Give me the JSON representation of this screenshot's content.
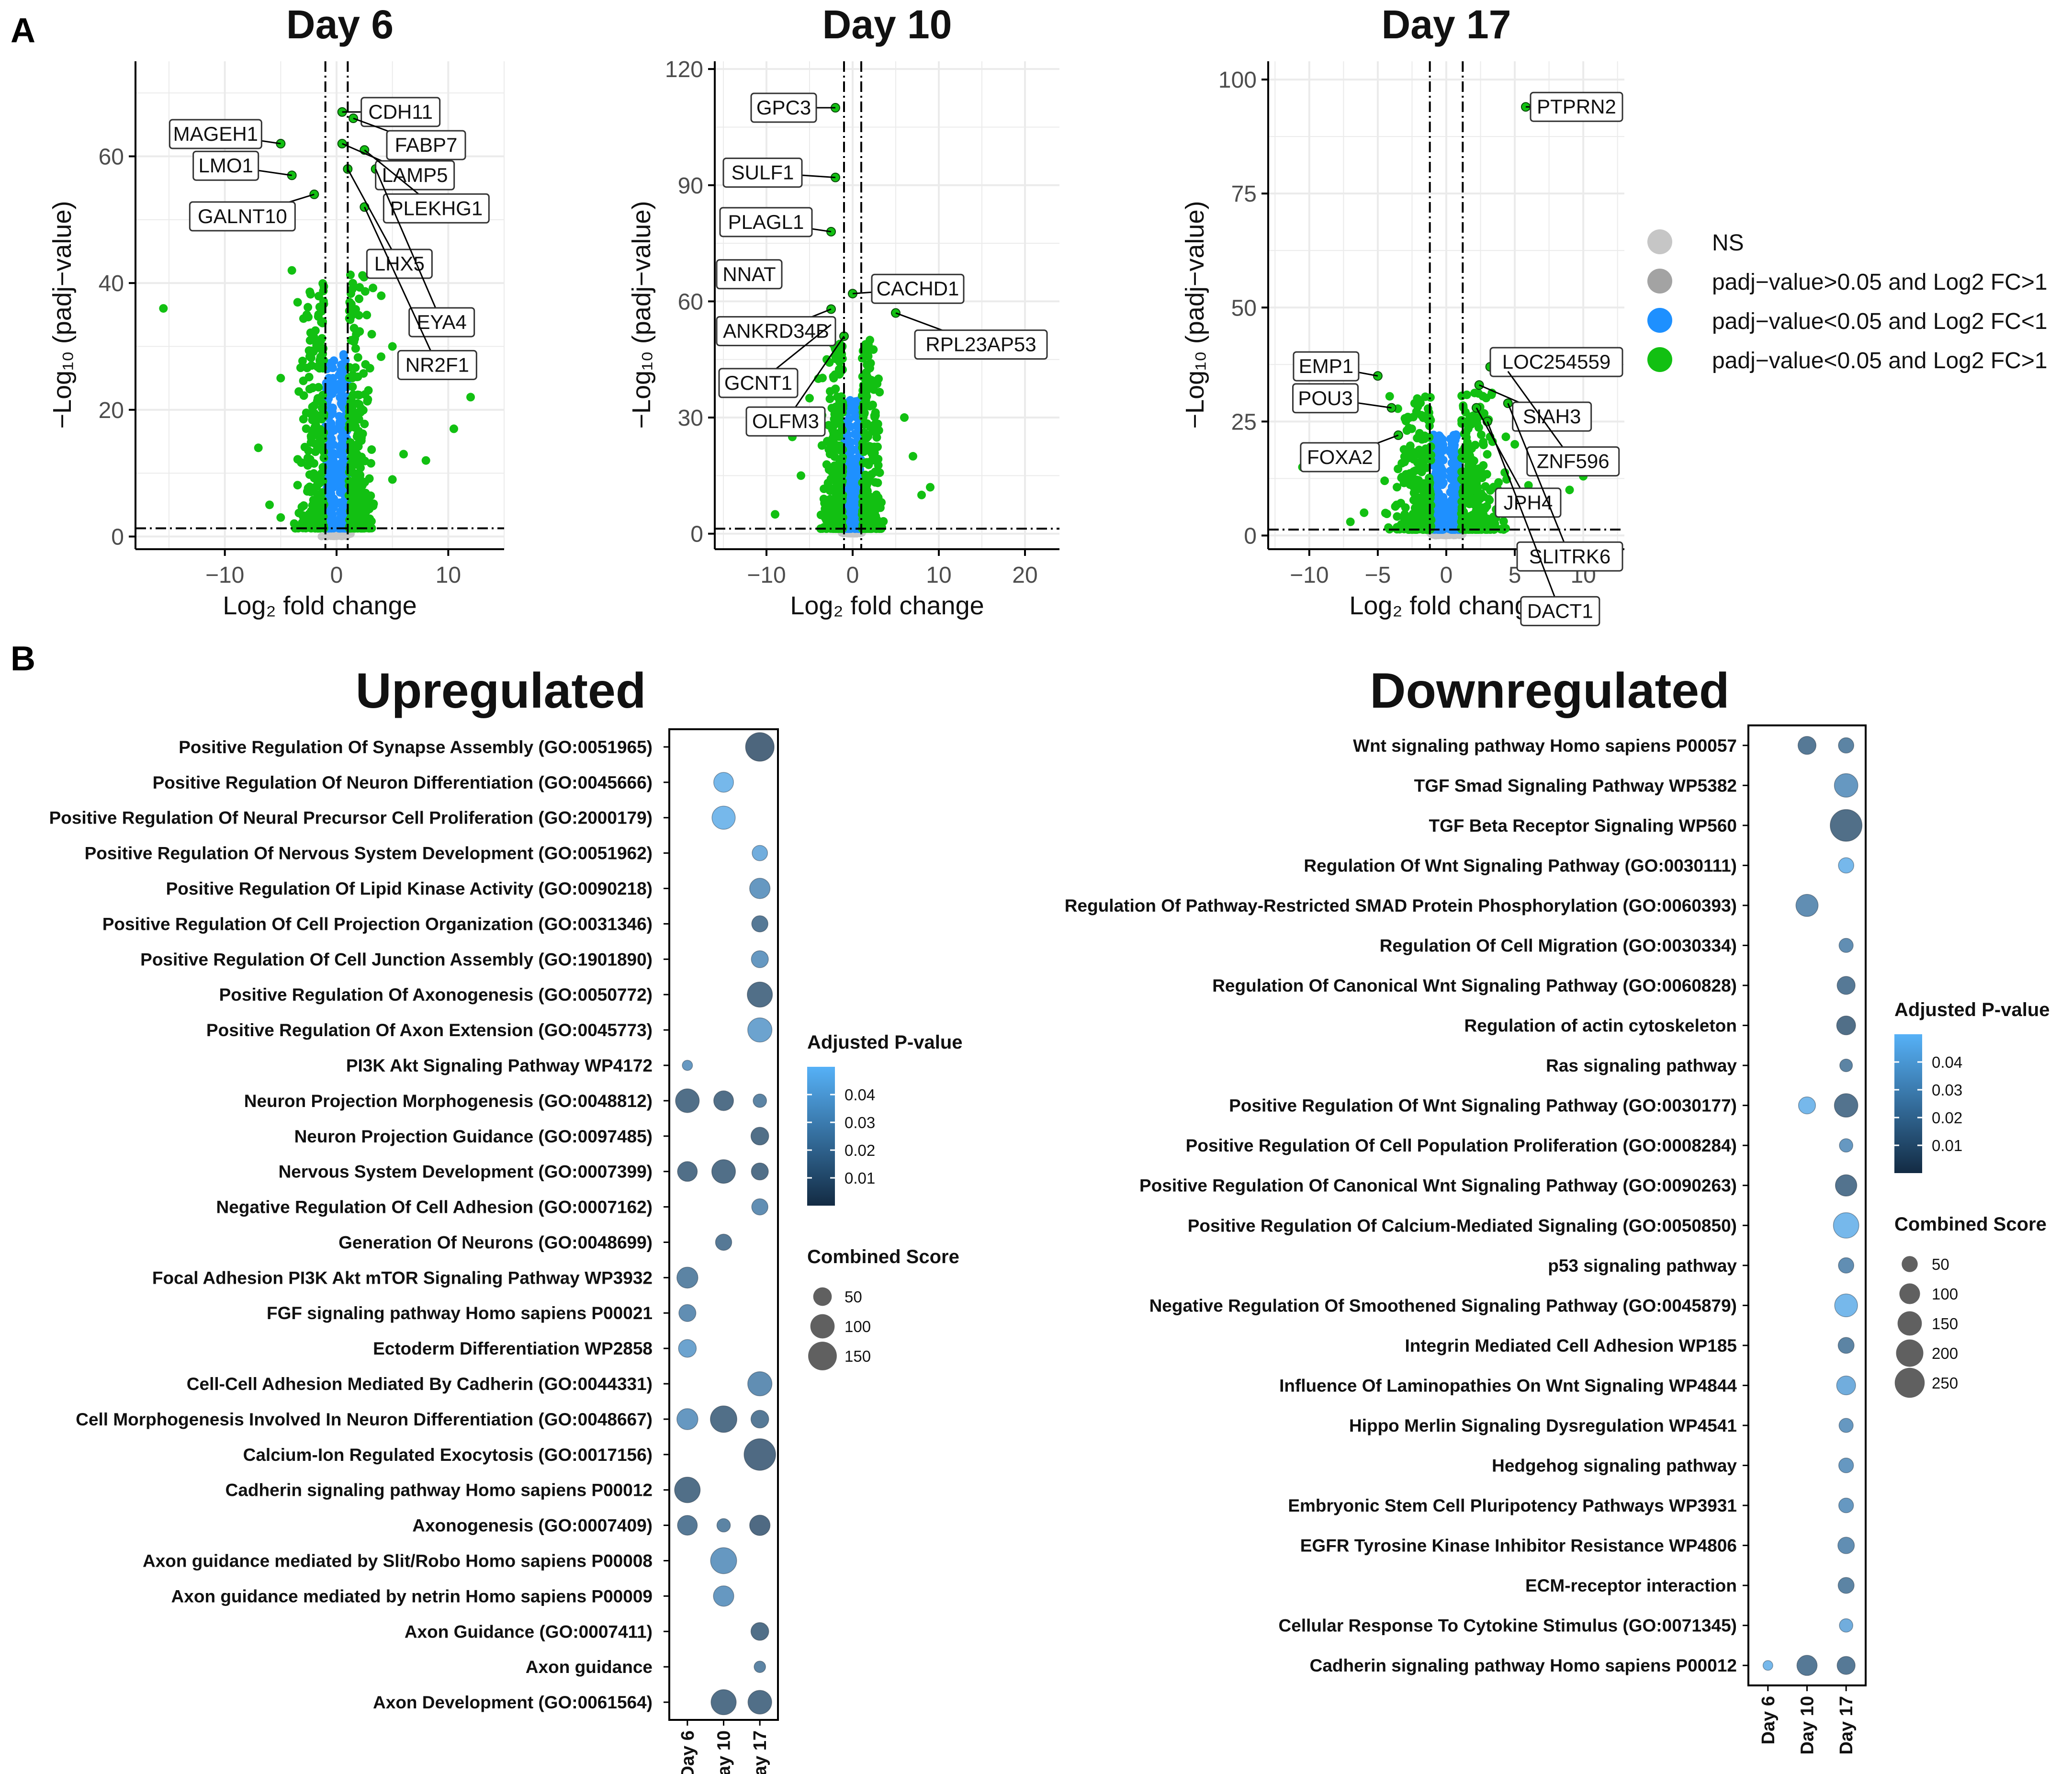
{
  "figure": {
    "panel_a_letter": "A",
    "panel_b_letter": "B",
    "volcano_xlabel": "Log₂ fold change",
    "volcano_ylabel": "−Log₁₀ (padj−value)",
    "legend": [
      {
        "label": "NS",
        "color": "#c6c6c6"
      },
      {
        "label": "padj−value>0.05 and Log2 FC>1",
        "color": "#a3a3a3"
      },
      {
        "label": "padj−value<0.05 and Log2 FC<1",
        "color": "#1e90ff"
      },
      {
        "label": "padj−value<0.05 and Log2 FC>1",
        "color": "#12c012"
      }
    ]
  },
  "chart_data": [
    {
      "type": "scatter",
      "title": "Day 6",
      "xlabel": "Log2 fold change",
      "ylabel": "-Log10 (padj-value)",
      "xlim": [
        -18,
        15
      ],
      "ylim": [
        -2,
        75
      ],
      "xticks": [
        -10,
        0,
        10
      ],
      "yticks": [
        0,
        20,
        40,
        60
      ],
      "xtick_labels": [
        "−10",
        "0",
        "10"
      ],
      "ytick_labels": [
        "0",
        "20",
        "40",
        "60"
      ],
      "vlines": [
        -1,
        1
      ],
      "hline": 1.3,
      "labels": [
        {
          "gene": "CDH11",
          "x": 0.5,
          "y": 67
        },
        {
          "gene": "FABP7",
          "x": 1.5,
          "y": 66
        },
        {
          "gene": "MAGEH1",
          "x": -5,
          "y": 62
        },
        {
          "gene": "LAMP5",
          "x": 0.5,
          "y": 62
        },
        {
          "gene": "PLEKHG1",
          "x": 2.5,
          "y": 61
        },
        {
          "gene": "LMO1",
          "x": -4,
          "y": 57
        },
        {
          "gene": "LHX5",
          "x": 1,
          "y": 58
        },
        {
          "gene": "EYA4",
          "x": 3.5,
          "y": 58
        },
        {
          "gene": "GALNT10",
          "x": -2,
          "y": 54
        },
        {
          "gene": "NR2F1",
          "x": 2.5,
          "y": 52
        }
      ],
      "extra_points": [
        [
          -15.5,
          36
        ],
        [
          12,
          22
        ],
        [
          10.5,
          17
        ],
        [
          8,
          12
        ],
        [
          -6,
          5
        ],
        [
          -5,
          3
        ],
        [
          5,
          9
        ],
        [
          6,
          13
        ],
        [
          -7,
          14
        ],
        [
          4,
          38
        ],
        [
          -4,
          42
        ],
        [
          5,
          30
        ],
        [
          -5,
          25
        ]
      ]
    },
    {
      "type": "scatter",
      "title": "Day 10",
      "xlabel": "Log2 fold change",
      "ylabel": "-Log10 (padj-value)",
      "xlim": [
        -16,
        24
      ],
      "ylim": [
        -4,
        122
      ],
      "xticks": [
        -10,
        0,
        10,
        20
      ],
      "yticks": [
        0,
        30,
        60,
        90,
        120
      ],
      "xtick_labels": [
        "−10",
        "0",
        "10",
        "20"
      ],
      "ytick_labels": [
        "0",
        "30",
        "60",
        "90",
        "120"
      ],
      "vlines": [
        -1,
        1
      ],
      "hline": 1.3,
      "labels": [
        {
          "gene": "GPC3",
          "x": -2,
          "y": 110
        },
        {
          "gene": "SULF1",
          "x": -2,
          "y": 92
        },
        {
          "gene": "PLAGL1",
          "x": -2.5,
          "y": 78
        },
        {
          "gene": "NNAT",
          "x": -13,
          "y": 67
        },
        {
          "gene": "CACHD1",
          "x": 0,
          "y": 62
        },
        {
          "gene": "ANKRD34B",
          "x": -2.5,
          "y": 58
        },
        {
          "gene": "RPL23AP53",
          "x": 5,
          "y": 57
        },
        {
          "gene": "GCNT1",
          "x": -2.5,
          "y": 54
        },
        {
          "gene": "OLFM3",
          "x": -1,
          "y": 51
        }
      ],
      "extra_points": [
        [
          -7,
          25
        ],
        [
          -6,
          15
        ],
        [
          8,
          10
        ],
        [
          9,
          12
        ],
        [
          6,
          30
        ],
        [
          -5,
          35
        ],
        [
          3,
          40
        ],
        [
          -3,
          45
        ],
        [
          2,
          50
        ],
        [
          7,
          20
        ],
        [
          -9,
          5
        ]
      ]
    },
    {
      "type": "scatter",
      "title": "Day 17",
      "xlabel": "Log2 fold change",
      "ylabel": "-Log10 (padj-value)",
      "xlim": [
        -13,
        13
      ],
      "ylim": [
        -3,
        104
      ],
      "xticks": [
        -10,
        -5,
        0,
        5,
        10
      ],
      "yticks": [
        0,
        25,
        50,
        75,
        100
      ],
      "xtick_labels": [
        "−10",
        "−5",
        "0",
        "5",
        "10"
      ],
      "ytick_labels": [
        "0",
        "25",
        "50",
        "75",
        "100"
      ],
      "vlines": [
        -1.2,
        1.2
      ],
      "hline": 1.3,
      "labels": [
        {
          "gene": "PTPRN2",
          "x": 5.8,
          "y": 94
        },
        {
          "gene": "LOC254559",
          "x": 3.2,
          "y": 37
        },
        {
          "gene": "EMP1",
          "x": -5,
          "y": 35
        },
        {
          "gene": "SIAH3",
          "x": 2.4,
          "y": 33
        },
        {
          "gene": "ZNF596",
          "x": 4.5,
          "y": 36
        },
        {
          "gene": "POU3",
          "x": -4,
          "y": 28
        },
        {
          "gene": "JPH4",
          "x": 2.2,
          "y": 28
        },
        {
          "gene": "SLITRK6",
          "x": 4.5,
          "y": 29
        },
        {
          "gene": "FOXA2",
          "x": -3.5,
          "y": 22
        },
        {
          "gene": "DACT1",
          "x": 3.0,
          "y": 25
        }
      ],
      "extra_points": [
        [
          -10.5,
          15
        ],
        [
          11,
          17
        ],
        [
          10,
          13
        ],
        [
          9,
          10
        ],
        [
          6,
          11
        ],
        [
          7,
          7
        ],
        [
          -6,
          5
        ],
        [
          -7,
          3
        ],
        [
          6.5,
          18
        ],
        [
          -4.5,
          12
        ],
        [
          5,
          20
        ],
        [
          -3,
          17
        ]
      ]
    },
    {
      "type": "scatter",
      "title": "Upregulated",
      "xlabel": "",
      "ylabel": "",
      "x_categories": [
        "Day 6",
        "Day 10",
        "Day 17"
      ],
      "color_legend_title": "Adjusted P-value",
      "color_ticks": [
        "0.04",
        "0.03",
        "0.02",
        "0.01"
      ],
      "color_range": [
        0.0,
        0.05
      ],
      "size_legend_title": "Combined Score",
      "size_legend_values": [
        50,
        100,
        150
      ],
      "size_legend_labels": [
        "50",
        "100",
        "150"
      ],
      "terms": [
        "Positive Regulation Of Synapse Assembly (GO:0051965)",
        "Positive Regulation Of Neuron Differentiation (GO:0045666)",
        "Positive Regulation Of Neural Precursor Cell Proliferation (GO:2000179)",
        "Positive Regulation Of Nervous System Development (GO:0051962)",
        "Positive Regulation Of Lipid Kinase Activity (GO:0090218)",
        "Positive Regulation Of Cell Projection Organization (GO:0031346)",
        "Positive Regulation Of Cell Junction Assembly (GO:1901890)",
        "Positive Regulation Of Axonogenesis (GO:0050772)",
        "Positive Regulation Of Axon Extension (GO:0045773)",
        "PI3K Akt Signaling Pathway WP4172",
        "Neuron Projection Morphogenesis (GO:0048812)",
        "Neuron Projection Guidance (GO:0097485)",
        "Nervous System Development (GO:0007399)",
        "Negative Regulation Of Cell Adhesion (GO:0007162)",
        "Generation Of Neurons (GO:0048699)",
        "Focal Adhesion PI3K Akt mTOR Signaling Pathway WP3932",
        "FGF signaling pathway Homo sapiens P00021",
        "Ectoderm Differentiation WP2858",
        "Cell-Cell Adhesion Mediated By Cadherin (GO:0044331)",
        "Cell Morphogenesis Involved In Neuron Differentiation (GO:0048667)",
        "Calcium-Ion Regulated Exocytosis (GO:0017156)",
        "Cadherin signaling pathway Homo sapiens P00012",
        "Axonogenesis (GO:0007409)",
        "Axon guidance mediated by Slit/Robo Homo sapiens P00008",
        "Axon guidance mediated by netrin Homo sapiens P00009",
        "Axon Guidance (GO:0007411)",
        "Axon guidance",
        "Axon Development (GO:0061564)"
      ],
      "points": [
        {
          "term": 0,
          "day": 2,
          "score": 150,
          "padj": 0.006
        },
        {
          "term": 1,
          "day": 1,
          "score": 60,
          "padj": 0.045
        },
        {
          "term": 2,
          "day": 1,
          "score": 90,
          "padj": 0.045
        },
        {
          "term": 3,
          "day": 2,
          "score": 30,
          "padj": 0.04
        },
        {
          "term": 4,
          "day": 2,
          "score": 65,
          "padj": 0.03
        },
        {
          "term": 5,
          "day": 2,
          "score": 35,
          "padj": 0.015
        },
        {
          "term": 6,
          "day": 2,
          "score": 40,
          "padj": 0.03
        },
        {
          "term": 7,
          "day": 2,
          "score": 110,
          "padj": 0.01
        },
        {
          "term": 8,
          "day": 2,
          "score": 100,
          "padj": 0.035
        },
        {
          "term": 9,
          "day": 0,
          "score": 8,
          "padj": 0.03
        },
        {
          "term": 10,
          "day": 0,
          "score": 95,
          "padj": 0.01
        },
        {
          "term": 10,
          "day": 1,
          "score": 60,
          "padj": 0.01
        },
        {
          "term": 10,
          "day": 2,
          "score": 20,
          "padj": 0.02
        },
        {
          "term": 11,
          "day": 2,
          "score": 45,
          "padj": 0.01
        },
        {
          "term": 12,
          "day": 0,
          "score": 60,
          "padj": 0.01
        },
        {
          "term": 12,
          "day": 1,
          "score": 95,
          "padj": 0.01
        },
        {
          "term": 12,
          "day": 2,
          "score": 40,
          "padj": 0.01
        },
        {
          "term": 13,
          "day": 2,
          "score": 35,
          "padj": 0.025
        },
        {
          "term": 14,
          "day": 1,
          "score": 35,
          "padj": 0.015
        },
        {
          "term": 15,
          "day": 0,
          "score": 70,
          "padj": 0.02
        },
        {
          "term": 16,
          "day": 0,
          "score": 40,
          "padj": 0.025
        },
        {
          "term": 17,
          "day": 0,
          "score": 45,
          "padj": 0.035
        },
        {
          "term": 18,
          "day": 2,
          "score": 100,
          "padj": 0.025
        },
        {
          "term": 19,
          "day": 0,
          "score": 70,
          "padj": 0.03
        },
        {
          "term": 19,
          "day": 1,
          "score": 125,
          "padj": 0.01
        },
        {
          "term": 19,
          "day": 2,
          "score": 45,
          "padj": 0.015
        },
        {
          "term": 20,
          "day": 2,
          "score": 190,
          "padj": 0.008
        },
        {
          "term": 21,
          "day": 0,
          "score": 115,
          "padj": 0.01
        },
        {
          "term": 22,
          "day": 0,
          "score": 60,
          "padj": 0.015
        },
        {
          "term": 22,
          "day": 1,
          "score": 20,
          "padj": 0.02
        },
        {
          "term": 22,
          "day": 2,
          "score": 65,
          "padj": 0.008
        },
        {
          "term": 23,
          "day": 1,
          "score": 120,
          "padj": 0.03
        },
        {
          "term": 24,
          "day": 1,
          "score": 65,
          "padj": 0.03
        },
        {
          "term": 25,
          "day": 2,
          "score": 45,
          "padj": 0.01
        },
        {
          "term": 26,
          "day": 2,
          "score": 12,
          "padj": 0.02
        },
        {
          "term": 27,
          "day": 1,
          "score": 110,
          "padj": 0.01
        },
        {
          "term": 27,
          "day": 2,
          "score": 95,
          "padj": 0.01
        }
      ]
    },
    {
      "type": "scatter",
      "title": "Downregulated",
      "xlabel": "",
      "ylabel": "",
      "x_categories": [
        "Day 6",
        "Day 10",
        "Day 17"
      ],
      "color_legend_title": "Adjusted P-value",
      "color_ticks": [
        "0.04",
        "0.03",
        "0.02",
        "0.01"
      ],
      "color_range": [
        0.0,
        0.05
      ],
      "size_legend_title": "Combined Score",
      "size_legend_values": [
        50,
        100,
        150,
        200,
        250
      ],
      "size_legend_labels": [
        "50",
        "100",
        "150",
        "200",
        "250"
      ],
      "terms": [
        "Wnt signaling pathway Homo sapiens P00057",
        "TGF Smad Signaling Pathway WP5382",
        "TGF Beta Receptor Signaling WP560",
        "Regulation Of Wnt Signaling Pathway (GO:0030111)",
        "Regulation Of Pathway-Restricted SMAD Protein Phosphorylation (GO:0060393)",
        "Regulation Of Cell Migration (GO:0030334)",
        "Regulation Of Canonical Wnt Signaling Pathway (GO:0060828)",
        "Regulation of actin cytoskeleton",
        "Ras signaling pathway",
        "Positive Regulation Of Wnt Signaling Pathway (GO:0030177)",
        "Positive Regulation Of Cell Population Proliferation (GO:0008284)",
        "Positive Regulation Of Canonical Wnt Signaling Pathway (GO:0090263)",
        "Positive Regulation Of Calcium-Mediated Signaling (GO:0050850)",
        "p53 signaling pathway",
        "Negative Regulation Of Smoothened Signaling Pathway (GO:0045879)",
        "Integrin Mediated Cell Adhesion WP185",
        "Influence Of Laminopathies On Wnt Signaling WP4844",
        "Hippo Merlin Signaling Dysregulation WP4541",
        "Hedgehog signaling pathway",
        "Embryonic Stem Cell Pluripotency Pathways WP3931",
        "EGFR Tyrosine Kinase Inhibitor Resistance WP4806",
        "ECM-receptor interaction",
        "Cellular Response To Cytokine Stimulus (GO:0071345)",
        "Cadherin signaling pathway Homo sapiens P00012"
      ],
      "points": [
        {
          "term": 0,
          "day": 1,
          "score": 70,
          "padj": 0.015
        },
        {
          "term": 0,
          "day": 2,
          "score": 45,
          "padj": 0.02
        },
        {
          "term": 1,
          "day": 2,
          "score": 140,
          "padj": 0.03
        },
        {
          "term": 2,
          "day": 2,
          "score": 290,
          "padj": 0.01
        },
        {
          "term": 3,
          "day": 2,
          "score": 45,
          "padj": 0.045
        },
        {
          "term": 4,
          "day": 1,
          "score": 120,
          "padj": 0.025
        },
        {
          "term": 5,
          "day": 2,
          "score": 35,
          "padj": 0.025
        },
        {
          "term": 6,
          "day": 2,
          "score": 70,
          "padj": 0.015
        },
        {
          "term": 7,
          "day": 2,
          "score": 80,
          "padj": 0.01
        },
        {
          "term": 8,
          "day": 2,
          "score": 25,
          "padj": 0.02
        },
        {
          "term": 9,
          "day": 1,
          "score": 60,
          "padj": 0.045
        },
        {
          "term": 9,
          "day": 2,
          "score": 140,
          "padj": 0.012
        },
        {
          "term": 10,
          "day": 2,
          "score": 30,
          "padj": 0.03
        },
        {
          "term": 11,
          "day": 2,
          "score": 110,
          "padj": 0.012
        },
        {
          "term": 12,
          "day": 2,
          "score": 170,
          "padj": 0.045
        },
        {
          "term": 13,
          "day": 2,
          "score": 45,
          "padj": 0.025
        },
        {
          "term": 14,
          "day": 2,
          "score": 130,
          "padj": 0.045
        },
        {
          "term": 15,
          "day": 2,
          "score": 50,
          "padj": 0.02
        },
        {
          "term": 16,
          "day": 2,
          "score": 80,
          "padj": 0.04
        },
        {
          "term": 17,
          "day": 2,
          "score": 35,
          "padj": 0.03
        },
        {
          "term": 18,
          "day": 2,
          "score": 40,
          "padj": 0.03
        },
        {
          "term": 19,
          "day": 2,
          "score": 40,
          "padj": 0.03
        },
        {
          "term": 20,
          "day": 2,
          "score": 55,
          "padj": 0.025
        },
        {
          "term": 21,
          "day": 2,
          "score": 50,
          "padj": 0.02
        },
        {
          "term": 22,
          "day": 2,
          "score": 30,
          "padj": 0.04
        },
        {
          "term": 23,
          "day": 0,
          "score": 10,
          "padj": 0.045
        },
        {
          "term": 23,
          "day": 1,
          "score": 95,
          "padj": 0.015
        },
        {
          "term": 23,
          "day": 2,
          "score": 70,
          "padj": 0.015
        }
      ]
    }
  ]
}
